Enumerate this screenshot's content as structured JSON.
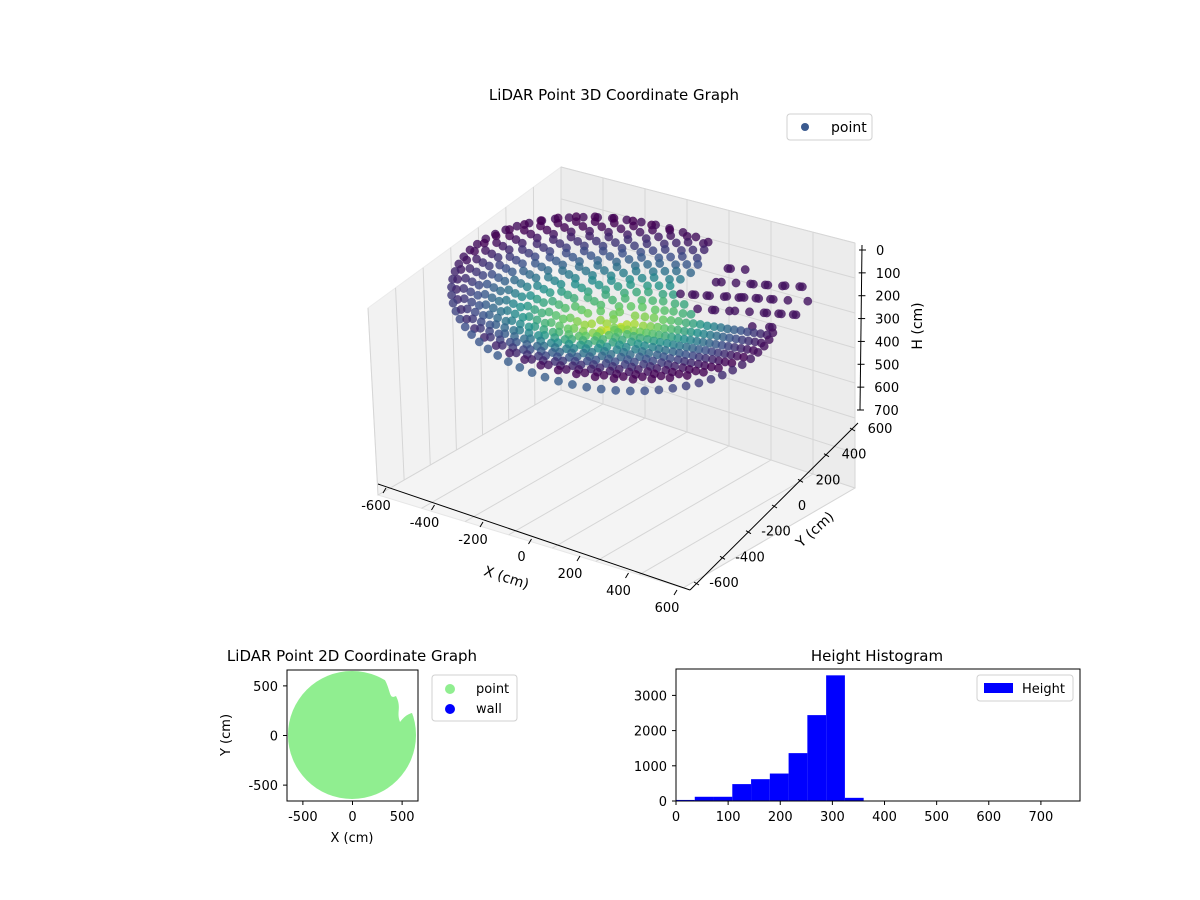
{
  "colors": {
    "point_legend": "#3b5a8f",
    "point_2d": "#90ee90",
    "wall_2d": "#0000ff",
    "histogram": "#0000ff",
    "pane_fill": "#f2f2f2",
    "grid": "#d0d0d0"
  },
  "chart_data": [
    {
      "type": "scatter",
      "title": "LiDAR Point 3D Coordinate Graph",
      "xlabel": "X (cm)",
      "ylabel": "Y (cm)",
      "zlabel": "H (cm)",
      "xlim": [
        -700,
        650
      ],
      "ylim": [
        -700,
        650
      ],
      "zlim": [
        0,
        750
      ],
      "z_inverted": true,
      "x_ticks": [
        "-600",
        "-400",
        "-200",
        "0",
        "200",
        "400",
        "600"
      ],
      "y_ticks": [
        "-600",
        "-400",
        "-200",
        "0",
        "200",
        "400",
        "600"
      ],
      "z_ticks": [
        "0",
        "100",
        "200",
        "300",
        "400",
        "500",
        "600",
        "700"
      ],
      "legend": [
        {
          "name": "point",
          "marker": "circle"
        }
      ],
      "legend_position": "top-right",
      "colormap": "viridis",
      "series": [
        {
          "name": "point",
          "shape": "bowl of points, radius ~640 cm, height ~100 cm at rim to ~320 cm at center, with a cut-out region near x 100..600, y 200..600"
        }
      ]
    },
    {
      "type": "scatter",
      "title": "LiDAR Point 2D Coordinate Graph",
      "xlabel": "X (cm)",
      "ylabel": "Y (cm)",
      "xlim": [
        -660,
        660
      ],
      "ylim": [
        -660,
        660
      ],
      "x_ticks": [
        "-500",
        "0",
        "500"
      ],
      "y_ticks": [
        "-500",
        "0",
        "500"
      ],
      "legend": [
        {
          "name": "point",
          "color": "#90ee90"
        },
        {
          "name": "wall",
          "color": "#0000ff"
        }
      ],
      "legend_position": "outside-right",
      "series": [
        {
          "name": "point",
          "radius": 640,
          "notch_x": [
            200,
            650
          ],
          "notch_y": [
            150,
            650
          ]
        },
        {
          "name": "wall",
          "points": []
        }
      ]
    },
    {
      "type": "bar",
      "title": "Height Histogram",
      "xlim": [
        0,
        775
      ],
      "ylim": [
        0,
        3750
      ],
      "x_ticks": [
        "0",
        "100",
        "200",
        "300",
        "400",
        "500",
        "600",
        "700"
      ],
      "y_ticks": [
        "0",
        "1000",
        "2000",
        "3000"
      ],
      "legend": [
        {
          "name": "Height",
          "color": "#0000ff"
        }
      ],
      "legend_position": "top-right",
      "bin_edges": [
        0,
        36,
        72,
        108,
        144,
        180,
        216,
        252,
        288,
        324,
        360
      ],
      "values": [
        30,
        120,
        120,
        480,
        620,
        780,
        1360,
        2440,
        3570,
        90
      ]
    }
  ]
}
